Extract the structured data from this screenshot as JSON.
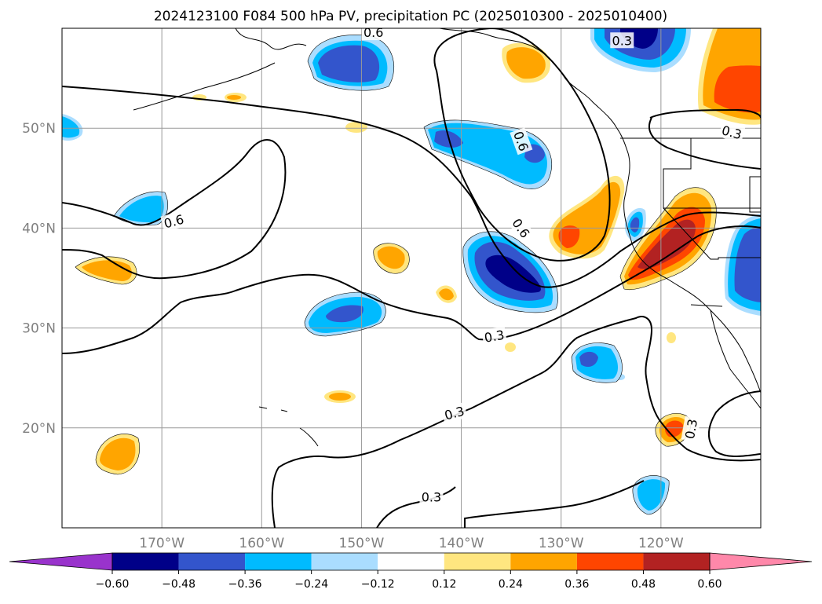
{
  "title": "2024123100 F084 500 hPa PV, precipitation PC (2025010300 - 2025010400)",
  "map": {
    "lon_range": [
      -180,
      -110
    ],
    "lat_range": [
      10,
      60
    ],
    "lon_ticks": [
      {
        "lon": -170,
        "label": "170°W"
      },
      {
        "lon": -160,
        "label": "160°W"
      },
      {
        "lon": -150,
        "label": "150°W"
      },
      {
        "lon": -140,
        "label": "140°W"
      },
      {
        "lon": -130,
        "label": "130°W"
      },
      {
        "lon": -120,
        "label": "120°W"
      }
    ],
    "lat_ticks": [
      {
        "lat": 20,
        "label": "20°N"
      },
      {
        "lat": 30,
        "label": "30°N"
      },
      {
        "lat": 40,
        "label": "40°N"
      },
      {
        "lat": 50,
        "label": "50°N"
      }
    ],
    "grid": true
  },
  "colors": {
    "neg_extreme": "#9933cc",
    "neg_048": "#000088",
    "neg_036": "#3355cc",
    "neg_024": "#00bbff",
    "neg_012": "#aaddff",
    "neutral": "#ffffff",
    "pos_012": "#ffe680",
    "pos_024": "#ffa500",
    "pos_036": "#ff4500",
    "pos_048": "#b22222",
    "pos_extreme": "#ff88aa"
  },
  "colorbar": {
    "ticks": [
      "−0.60",
      "−0.48",
      "−0.36",
      "−0.24",
      "−0.12",
      "0.12",
      "0.24",
      "0.36",
      "0.48",
      "0.60"
    ],
    "bins": [
      "neg_048",
      "neg_036",
      "neg_024",
      "neg_012",
      "neutral",
      "pos_012",
      "pos_024",
      "pos_036",
      "pos_048"
    ]
  },
  "contour_labels": [
    {
      "text": "0.6",
      "lon": -168.8,
      "lat": 40.7,
      "rot": -15
    },
    {
      "text": "0.6",
      "lon": -134.0,
      "lat": 48.7,
      "rot": 70
    },
    {
      "text": "0.6",
      "lon": -134.0,
      "lat": 40.0,
      "rot": 55
    },
    {
      "text": "0.6",
      "lon": -148.8,
      "lat": 59.6,
      "rot": 0
    },
    {
      "text": "0.3",
      "lon": -123.9,
      "lat": 58.8,
      "rot": 0
    },
    {
      "text": "0.3",
      "lon": -112.9,
      "lat": 49.6,
      "rot": 15
    },
    {
      "text": "0.3",
      "lon": -136.7,
      "lat": 29.2,
      "rot": -10
    },
    {
      "text": "0.3",
      "lon": -140.7,
      "lat": 21.5,
      "rot": -15
    },
    {
      "text": "0.3",
      "lon": -143.0,
      "lat": 13.1,
      "rot": 0
    },
    {
      "text": "0.3",
      "lon": -117.0,
      "lat": 19.9,
      "rot": -80
    }
  ]
}
